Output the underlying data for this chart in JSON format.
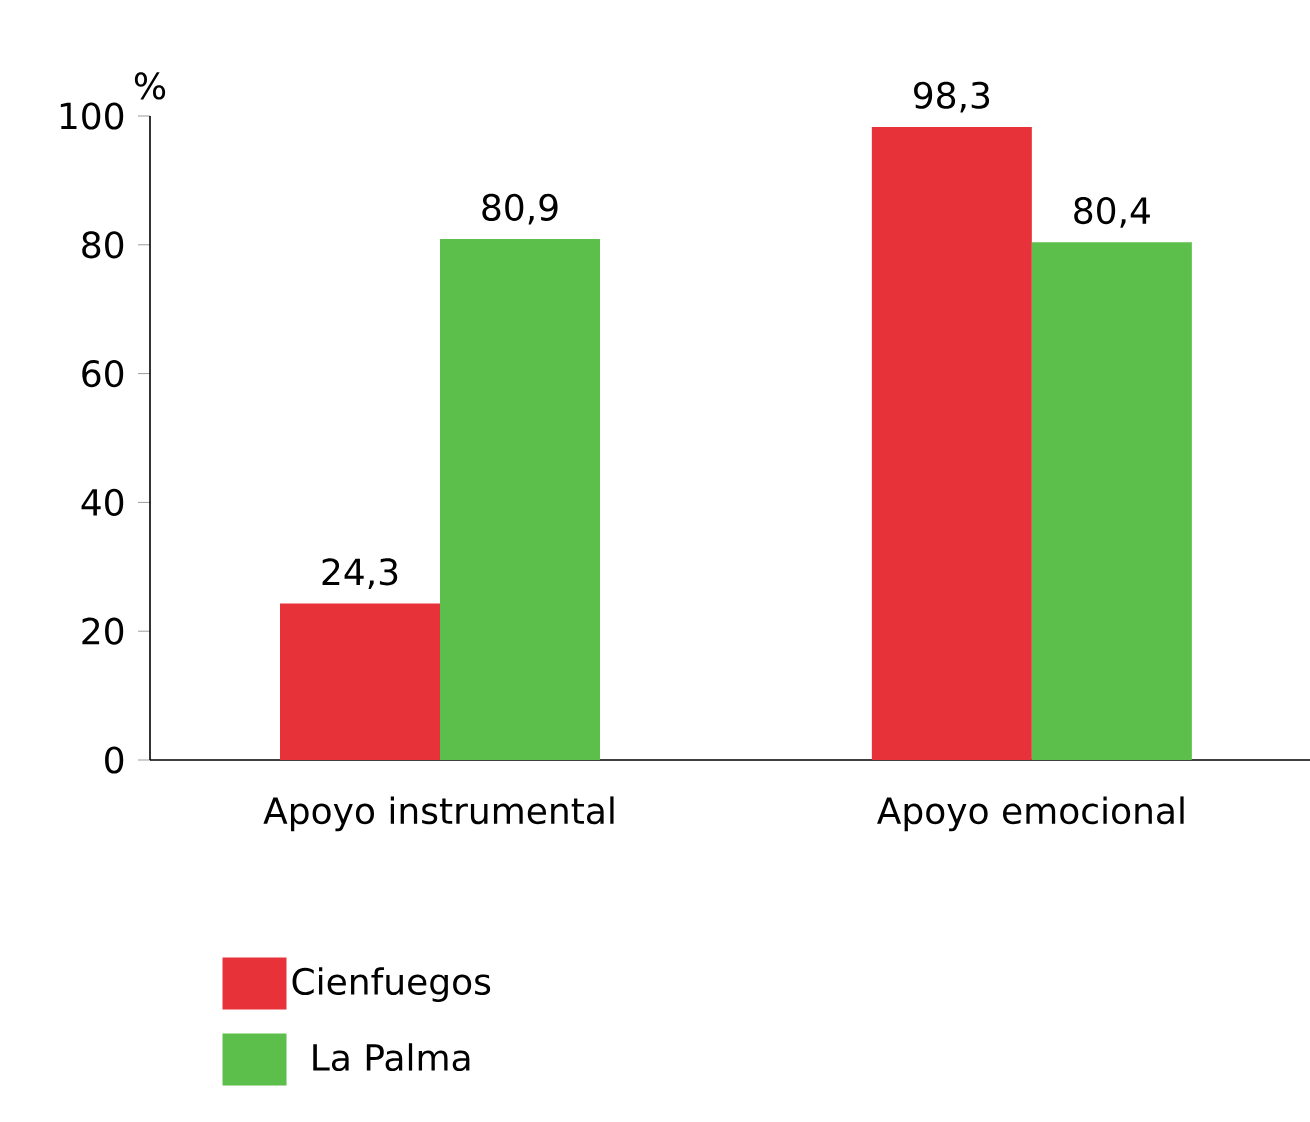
{
  "chart_data": {
    "type": "bar",
    "ylabel": "%",
    "categories": [
      "Apoyo instrumental",
      "Apoyo emocional"
    ],
    "series": [
      {
        "name": "Cienfuegos",
        "color": "#e8323a",
        "values": [
          24.3,
          98.3
        ],
        "value_labels": [
          "24,3",
          "98,3"
        ]
      },
      {
        "name": "La Palma",
        "color": "#5cbf4c",
        "values": [
          80.9,
          80.4
        ],
        "value_labels": [
          "80,9",
          "80,4"
        ]
      }
    ],
    "ylim": [
      0,
      100
    ],
    "yticks": [
      0,
      20,
      40,
      60,
      80,
      100
    ],
    "grid": false,
    "legend": "bottom left"
  }
}
